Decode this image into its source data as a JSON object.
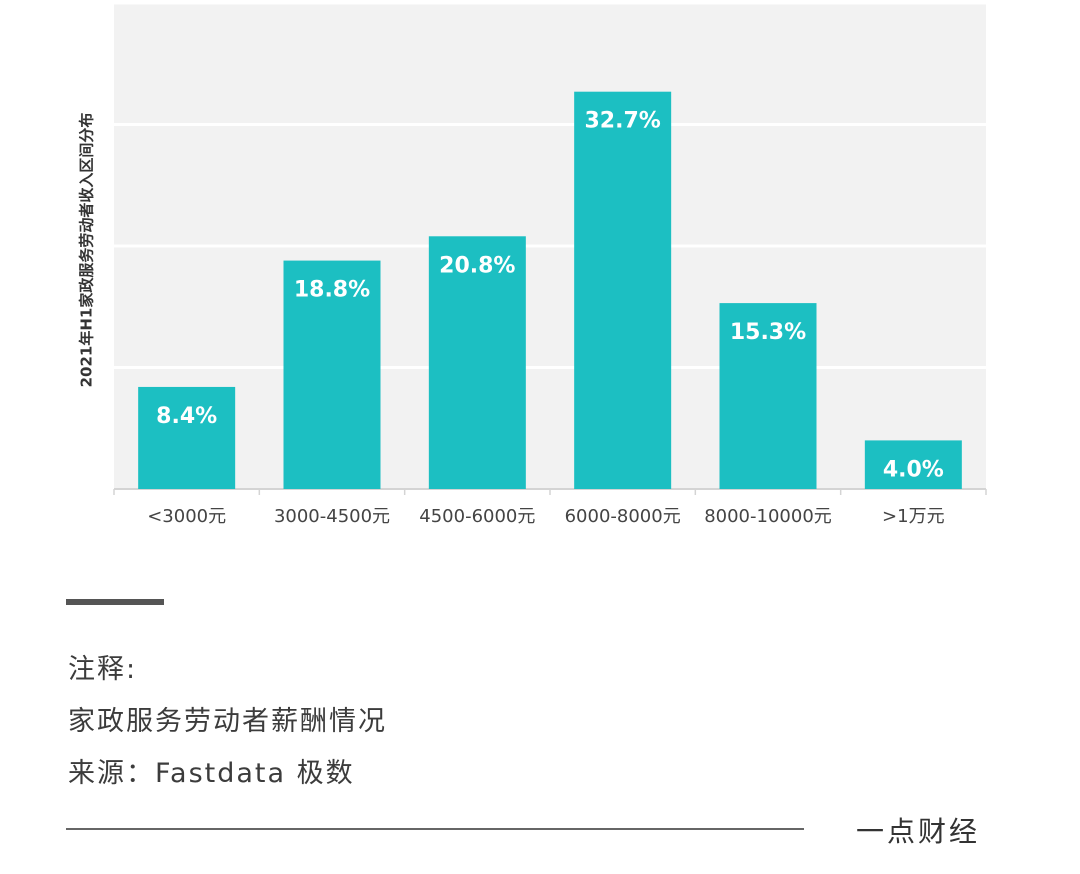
{
  "chart_data": {
    "type": "bar",
    "ylabel": "2021年H1家政服务劳动者收入区间分布",
    "categories": [
      "<3000元",
      "3000-4500元",
      "4500-6000元",
      "6000-8000元",
      "8000-10000元",
      ">1万元"
    ],
    "values": [
      8.4,
      18.8,
      20.8,
      32.7,
      15.3,
      4.0
    ],
    "data_labels": [
      "8.4%",
      "18.8%",
      "20.8%",
      "32.7%",
      "15.3%",
      "4.0%"
    ],
    "ylim": [
      0,
      40
    ],
    "grid": true,
    "bar_color": "#1cbfc2",
    "plot_background": "#f2f2f2"
  },
  "notes": {
    "heading": "注释:",
    "line1": "家政服务劳动者薪酬情况",
    "line2": "来源：Fastdata 极数"
  },
  "brand": "一点财经"
}
